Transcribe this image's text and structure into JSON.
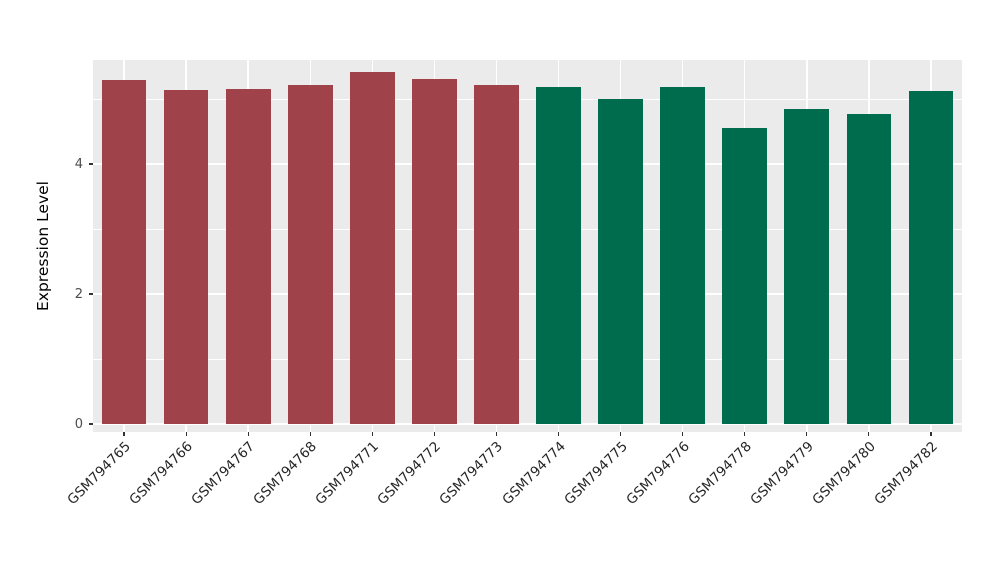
{
  "chart_data": {
    "type": "bar",
    "title": "",
    "xlabel": "",
    "ylabel": "Expression Level",
    "categories": [
      "GSM794765",
      "GSM794766",
      "GSM794767",
      "GSM794768",
      "GSM794771",
      "GSM794772",
      "GSM794773",
      "GSM794774",
      "GSM794775",
      "GSM794776",
      "GSM794778",
      "GSM794779",
      "GSM794780",
      "GSM794782"
    ],
    "values": [
      5.29,
      5.14,
      5.15,
      5.22,
      5.42,
      5.31,
      5.22,
      5.18,
      5.0,
      5.18,
      4.55,
      4.85,
      4.77,
      5.12
    ],
    "groups": [
      "red",
      "red",
      "red",
      "red",
      "red",
      "red",
      "red",
      "green",
      "green",
      "green",
      "green",
      "green",
      "green",
      "green"
    ],
    "group_colors": {
      "red": "#A04249",
      "green": "#006C4E"
    },
    "yticks": [
      0,
      2,
      4
    ],
    "ytick_labels": [
      "0",
      "2",
      "4"
    ],
    "minor_ticks": [
      1,
      3,
      5
    ],
    "ylim": [
      0,
      5.6
    ],
    "panel_background": "#EBEBEB",
    "grid_color": "#FFFFFF",
    "grid": "on",
    "legend_position": "none"
  }
}
